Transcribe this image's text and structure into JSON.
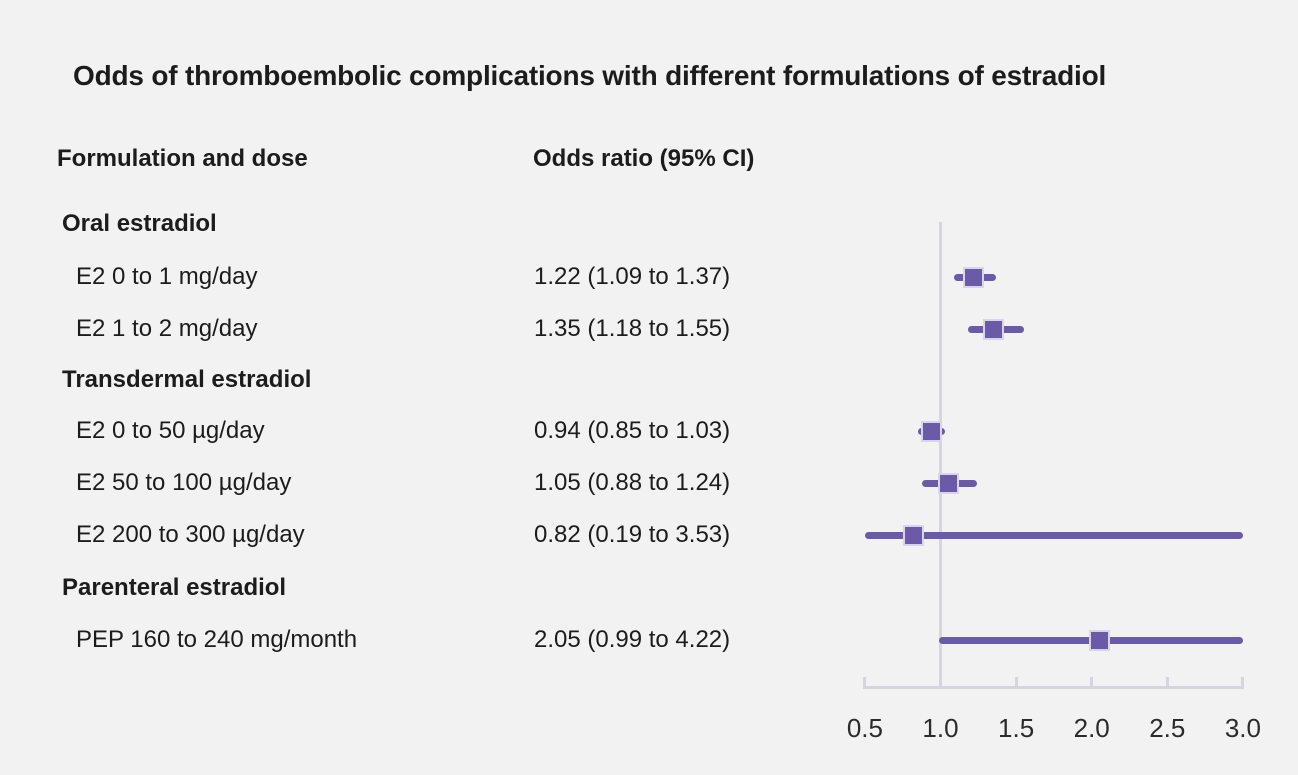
{
  "title": "Odds of thromboembolic complications with different formulations of estradiol",
  "columns": {
    "formulation": "Formulation and dose",
    "odds_ratio": "Odds ratio (95% CI)"
  },
  "table": {
    "rows": [
      {
        "type": "group",
        "label": "Oral estradiol",
        "or_text": ""
      },
      {
        "type": "item",
        "label": "E2 0 to 1 mg/day",
        "or_text": "1.22 (1.09 to 1.37)"
      },
      {
        "type": "item",
        "label": "E2 1 to 2 mg/day",
        "or_text": "1.35 (1.18 to 1.55)"
      },
      {
        "type": "group",
        "label": "Transdermal estradiol",
        "or_text": ""
      },
      {
        "type": "item",
        "label": "E2 0 to 50 µg/day",
        "or_text": "0.94 (0.85 to 1.03)"
      },
      {
        "type": "item",
        "label": "E2 50 to 100 µg/day",
        "or_text": "1.05 (0.88 to 1.24)"
      },
      {
        "type": "item",
        "label": "E2 200 to 300 µg/day",
        "or_text": "0.82 (0.19 to 3.53)"
      },
      {
        "type": "group",
        "label": "Parenteral estradiol",
        "or_text": ""
      },
      {
        "type": "item",
        "label": "PEP 160 to 240 mg/month",
        "or_text": "2.05 (0.99 to 4.22)"
      }
    ]
  },
  "chart_data": {
    "type": "forest",
    "title": "Odds of thromboembolic complications with different formulations of estradiol",
    "xlabel": "",
    "ylabel": "",
    "x_axis": {
      "range": [
        0.5,
        3.0
      ],
      "ticks": [
        0.5,
        1.0,
        1.5,
        2.0,
        2.5,
        3.0
      ],
      "tick_labels": [
        "0.5",
        "1.0",
        "1.5",
        "2.0",
        "2.5",
        "3.0"
      ],
      "reference_line": 1.0
    },
    "series": [
      {
        "label": "E2 0 to 1 mg/day",
        "or": 1.22,
        "ci_low": 1.09,
        "ci_high": 1.37
      },
      {
        "label": "E2 1 to 2 mg/day",
        "or": 1.35,
        "ci_low": 1.18,
        "ci_high": 1.55
      },
      {
        "label": "E2 0 to 50 µg/day",
        "or": 0.94,
        "ci_low": 0.85,
        "ci_high": 1.03
      },
      {
        "label": "E2 50 to 100 µg/day",
        "or": 1.05,
        "ci_low": 0.88,
        "ci_high": 1.24
      },
      {
        "label": "E2 200 to 300 µg/day",
        "or": 0.82,
        "ci_low": 0.19,
        "ci_high": 3.53
      },
      {
        "label": "PEP 160 to 240 mg/month",
        "or": 2.05,
        "ci_low": 0.99,
        "ci_high": 4.22
      }
    ],
    "legend": null,
    "grid": false,
    "colors": {
      "marker": "#6a5aa8",
      "axis": "#d3d6e0",
      "background": "#f2f2f2",
      "text": "#1c1c1c"
    }
  }
}
